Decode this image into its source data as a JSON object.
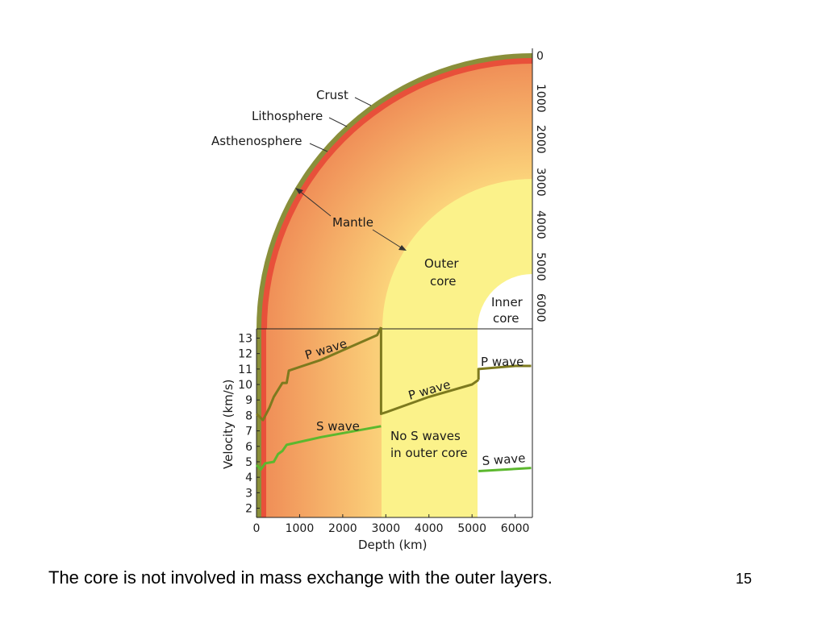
{
  "diagram": {
    "layer_labels": {
      "crust": "Crust",
      "lithosphere": "Lithosphere",
      "asthenosphere": "Asthenosphere",
      "mantle": "Mantle",
      "outer_core_line1": "Outer",
      "outer_core_line2": "core",
      "inner_core_line1": "Inner",
      "inner_core_line2": "core"
    },
    "depth_scale_labels": [
      "0",
      "1000",
      "2000",
      "3000",
      "4000",
      "5000",
      "6000"
    ],
    "colors": {
      "crust": "#8a8f3a",
      "asthenosphere": "#e8503a",
      "mantle_outer": "#ef8a55",
      "mantle_inner": "#fbd27a",
      "outer_core": "#fbf28a",
      "inner_core": "#ffffff"
    }
  },
  "chart_data": {
    "type": "line",
    "xlabel": "Depth (km)",
    "ylabel": "Velocity (km/s)",
    "x_ticks": [
      "0",
      "1000",
      "2000",
      "3000",
      "4000",
      "5000",
      "6000"
    ],
    "y_ticks": [
      "2",
      "3",
      "4",
      "5",
      "6",
      "7",
      "8",
      "9",
      "10",
      "11",
      "12",
      "13"
    ],
    "xlim": [
      0,
      6400
    ],
    "ylim": [
      1.4,
      13.6
    ],
    "series": [
      {
        "name": "P wave",
        "color": "#7d7a1e",
        "segments": [
          [
            [
              0,
              8.1
            ],
            [
              150,
              7.7
            ],
            [
              300,
              8.5
            ],
            [
              400,
              9.2
            ],
            [
              600,
              10.1
            ],
            [
              700,
              10.1
            ],
            [
              750,
              10.9
            ],
            [
              1500,
              11.6
            ],
            [
              2800,
              13.2
            ],
            [
              2890,
              13.7
            ]
          ],
          [
            [
              2890,
              13.7
            ],
            [
              2890,
              8.1
            ],
            [
              3000,
              8.2
            ],
            [
              4000,
              9.2
            ],
            [
              5000,
              10.0
            ],
            [
              5150,
              10.3
            ]
          ],
          [
            [
              5150,
              10.3
            ],
            [
              5150,
              11.0
            ],
            [
              6000,
              11.2
            ],
            [
              6371,
              11.2
            ]
          ]
        ],
        "labels": [
          "P wave",
          "P wave",
          "P wave"
        ]
      },
      {
        "name": "S wave",
        "color": "#5cb82e",
        "segments": [
          [
            [
              0,
              4.8
            ],
            [
              100,
              4.5
            ],
            [
              200,
              4.9
            ],
            [
              400,
              5.0
            ],
            [
              500,
              5.5
            ],
            [
              600,
              5.7
            ],
            [
              700,
              6.1
            ],
            [
              1500,
              6.6
            ],
            [
              2890,
              7.3
            ]
          ],
          [
            [
              5150,
              4.4
            ],
            [
              6371,
              4.6
            ]
          ]
        ],
        "labels": [
          "S wave",
          "S wave"
        ]
      }
    ],
    "annotation_line1": "No S waves",
    "annotation_line2": "in outer core",
    "regions": [
      {
        "name": "mantle",
        "from": 0,
        "to": 2890
      },
      {
        "name": "outer core",
        "from": 2890,
        "to": 5150
      },
      {
        "name": "inner core",
        "from": 5150,
        "to": 6371
      }
    ]
  },
  "caption": "The core is not involved in mass exchange with the outer layers.",
  "page_number": "15"
}
